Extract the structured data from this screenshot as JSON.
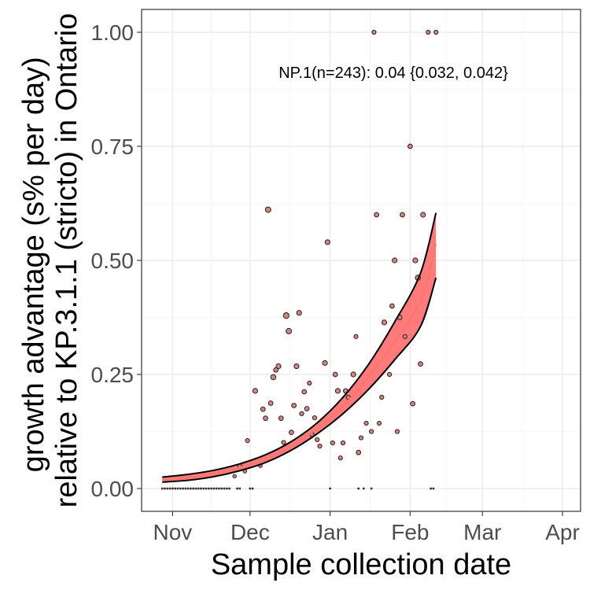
{
  "chart_data": {
    "type": "scatter",
    "xlabel": "Sample collection date",
    "ylabel_lines": [
      "growth advantage (s% per day)",
      "relative to KP.3.1.1 (stricto) in Ontario"
    ],
    "annotation": "NP.1(n=243): 0.04 {0.032, 0.042}",
    "x_ticks": [
      {
        "label": "Nov",
        "date": "2024-11-01"
      },
      {
        "label": "Dec",
        "date": "2024-12-01"
      },
      {
        "label": "Jan",
        "date": "2025-01-01"
      },
      {
        "label": "Feb",
        "date": "2025-02-01"
      },
      {
        "label": "Mar",
        "date": "2025-03-01"
      },
      {
        "label": "Apr",
        "date": "2025-04-01"
      }
    ],
    "xlim": [
      "2024-10-20",
      "2025-04-08"
    ],
    "y_ticks": [
      0.0,
      0.25,
      0.5,
      0.75,
      1.0
    ],
    "y_tick_labels": [
      "0.00",
      "0.25",
      "0.50",
      "0.75",
      "1.00"
    ],
    "ylim": [
      -0.05,
      1.05
    ],
    "grid": true,
    "colors": {
      "fit": "#f8766d",
      "band": "#ff6b6b",
      "bound": "#000000",
      "point_fill": "#c98a85",
      "point_stroke": "#3a1a1a"
    },
    "fit": [
      {
        "x": "2024-10-28",
        "y": 0.019,
        "lower": 0.014,
        "upper": 0.025
      },
      {
        "x": "2024-11-07",
        "y": 0.024,
        "lower": 0.018,
        "upper": 0.031
      },
      {
        "x": "2024-11-17",
        "y": 0.033,
        "lower": 0.026,
        "upper": 0.04
      },
      {
        "x": "2024-11-27",
        "y": 0.046,
        "lower": 0.039,
        "upper": 0.054
      },
      {
        "x": "2024-12-07",
        "y": 0.065,
        "lower": 0.057,
        "upper": 0.074
      },
      {
        "x": "2024-12-17",
        "y": 0.093,
        "lower": 0.084,
        "upper": 0.103
      },
      {
        "x": "2024-12-27",
        "y": 0.131,
        "lower": 0.12,
        "upper": 0.144
      },
      {
        "x": "2025-01-06",
        "y": 0.181,
        "lower": 0.164,
        "upper": 0.2
      },
      {
        "x": "2025-01-16",
        "y": 0.245,
        "lower": 0.218,
        "upper": 0.273
      },
      {
        "x": "2025-01-26",
        "y": 0.322,
        "lower": 0.282,
        "upper": 0.365
      },
      {
        "x": "2025-02-05",
        "y": 0.412,
        "lower": 0.355,
        "upper": 0.472
      },
      {
        "x": "2025-02-11",
        "y": 0.536,
        "lower": 0.462,
        "upper": 0.604
      }
    ],
    "points": [
      {
        "x": "2024-10-28",
        "y": 0.0,
        "n": 1
      },
      {
        "x": "2024-10-29",
        "y": 0.0,
        "n": 1
      },
      {
        "x": "2024-10-30",
        "y": 0.0,
        "n": 1
      },
      {
        "x": "2024-10-31",
        "y": 0.0,
        "n": 1
      },
      {
        "x": "2024-11-01",
        "y": 0.0,
        "n": 1
      },
      {
        "x": "2024-11-02",
        "y": 0.0,
        "n": 1
      },
      {
        "x": "2024-11-03",
        "y": 0.0,
        "n": 1
      },
      {
        "x": "2024-11-04",
        "y": 0.0,
        "n": 1
      },
      {
        "x": "2024-11-05",
        "y": 0.0,
        "n": 1
      },
      {
        "x": "2024-11-06",
        "y": 0.0,
        "n": 1
      },
      {
        "x": "2024-11-07",
        "y": 0.0,
        "n": 1
      },
      {
        "x": "2024-11-08",
        "y": 0.0,
        "n": 1
      },
      {
        "x": "2024-11-09",
        "y": 0.0,
        "n": 1
      },
      {
        "x": "2024-11-10",
        "y": 0.0,
        "n": 1
      },
      {
        "x": "2024-11-11",
        "y": 0.0,
        "n": 1
      },
      {
        "x": "2024-11-12",
        "y": 0.0,
        "n": 1
      },
      {
        "x": "2024-11-13",
        "y": 0.0,
        "n": 1
      },
      {
        "x": "2024-11-14",
        "y": 0.0,
        "n": 1
      },
      {
        "x": "2024-11-15",
        "y": 0.0,
        "n": 1
      },
      {
        "x": "2024-11-16",
        "y": 0.0,
        "n": 1
      },
      {
        "x": "2024-11-17",
        "y": 0.0,
        "n": 1
      },
      {
        "x": "2024-11-18",
        "y": 0.0,
        "n": 1
      },
      {
        "x": "2024-11-19",
        "y": 0.0,
        "n": 1
      },
      {
        "x": "2024-11-20",
        "y": 0.0,
        "n": 1
      },
      {
        "x": "2024-11-21",
        "y": 0.0,
        "n": 1
      },
      {
        "x": "2024-11-22",
        "y": 0.0,
        "n": 1
      },
      {
        "x": "2024-11-23",
        "y": 0.0,
        "n": 1
      },
      {
        "x": "2024-11-26",
        "y": 0.0,
        "n": 1
      },
      {
        "x": "2024-11-27",
        "y": 0.0,
        "n": 1
      },
      {
        "x": "2024-12-01",
        "y": 0.0,
        "n": 1
      },
      {
        "x": "2024-12-02",
        "y": 0.0,
        "n": 1
      },
      {
        "x": "2025-01-01",
        "y": 0.0,
        "n": 1
      },
      {
        "x": "2025-01-12",
        "y": 0.0,
        "n": 1
      },
      {
        "x": "2025-01-14",
        "y": 0.0,
        "n": 1
      },
      {
        "x": "2025-01-17",
        "y": 0.0,
        "n": 1
      },
      {
        "x": "2025-02-09",
        "y": 0.0,
        "n": 1
      },
      {
        "x": "2025-02-10",
        "y": 0.0,
        "n": 1
      },
      {
        "x": "2024-11-25",
        "y": 0.027,
        "n": 1
      },
      {
        "x": "2024-11-27",
        "y": 0.05,
        "n": 2
      },
      {
        "x": "2024-11-29",
        "y": 0.038,
        "n": 1
      },
      {
        "x": "2024-11-30",
        "y": 0.105,
        "n": 2
      },
      {
        "x": "2024-12-03",
        "y": 0.214,
        "n": 4
      },
      {
        "x": "2024-12-05",
        "y": 0.05,
        "n": 1
      },
      {
        "x": "2024-12-06",
        "y": 0.174,
        "n": 3
      },
      {
        "x": "2024-12-07",
        "y": 0.154,
        "n": 3
      },
      {
        "x": "2024-12-08",
        "y": 0.611,
        "n": 6
      },
      {
        "x": "2024-12-09",
        "y": 0.187,
        "n": 3
      },
      {
        "x": "2024-12-10",
        "y": 0.244,
        "n": 5
      },
      {
        "x": "2024-12-11",
        "y": 0.26,
        "n": 3
      },
      {
        "x": "2024-12-12",
        "y": 0.268,
        "n": 4
      },
      {
        "x": "2024-12-13",
        "y": 0.154,
        "n": 3
      },
      {
        "x": "2024-12-14",
        "y": 0.101,
        "n": 2
      },
      {
        "x": "2024-12-15",
        "y": 0.379,
        "n": 7
      },
      {
        "x": "2024-12-16",
        "y": 0.345,
        "n": 6
      },
      {
        "x": "2024-12-17",
        "y": 0.123,
        "n": 3
      },
      {
        "x": "2024-12-18",
        "y": 0.182,
        "n": 3
      },
      {
        "x": "2024-12-19",
        "y": 0.268,
        "n": 4
      },
      {
        "x": "2024-12-20",
        "y": 0.385,
        "n": 4
      },
      {
        "x": "2024-12-21",
        "y": 0.164,
        "n": 2
      },
      {
        "x": "2024-12-22",
        "y": 0.212,
        "n": 3
      },
      {
        "x": "2024-12-23",
        "y": 0.175,
        "n": 3
      },
      {
        "x": "2024-12-24",
        "y": 0.231,
        "n": 2
      },
      {
        "x": "2024-12-25",
        "y": 0.118,
        "n": 2
      },
      {
        "x": "2024-12-26",
        "y": 0.155,
        "n": 2
      },
      {
        "x": "2024-12-27",
        "y": 0.107,
        "n": 2
      },
      {
        "x": "2024-12-28",
        "y": 0.093,
        "n": 2
      },
      {
        "x": "2024-12-30",
        "y": 0.275,
        "n": 4
      },
      {
        "x": "2024-12-31",
        "y": 0.54,
        "n": 4
      },
      {
        "x": "2025-01-02",
        "y": 0.1,
        "n": 2
      },
      {
        "x": "2025-01-03",
        "y": 0.25,
        "n": 3
      },
      {
        "x": "2025-01-04",
        "y": 0.214,
        "n": 4
      },
      {
        "x": "2025-01-05",
        "y": 0.067,
        "n": 2
      },
      {
        "x": "2025-01-06",
        "y": 0.1,
        "n": 2
      },
      {
        "x": "2025-01-07",
        "y": 0.214,
        "n": 3
      },
      {
        "x": "2025-01-08",
        "y": 0.2,
        "n": 2
      },
      {
        "x": "2025-01-10",
        "y": 0.25,
        "n": 4
      },
      {
        "x": "2025-01-11",
        "y": 0.333,
        "n": 2
      },
      {
        "x": "2025-01-12",
        "y": 0.079,
        "n": 3
      },
      {
        "x": "2025-01-13",
        "y": 0.111,
        "n": 2
      },
      {
        "x": "2025-01-15",
        "y": 0.143,
        "n": 2
      },
      {
        "x": "2025-01-17",
        "y": 0.125,
        "n": 2
      },
      {
        "x": "2025-01-18",
        "y": 1.0,
        "n": 2
      },
      {
        "x": "2025-01-19",
        "y": 0.6,
        "n": 3
      },
      {
        "x": "2025-01-20",
        "y": 0.143,
        "n": 2
      },
      {
        "x": "2025-01-21",
        "y": 0.2,
        "n": 2
      },
      {
        "x": "2025-01-22",
        "y": 0.364,
        "n": 4
      },
      {
        "x": "2025-01-24",
        "y": 0.25,
        "n": 2
      },
      {
        "x": "2025-01-25",
        "y": 0.4,
        "n": 3
      },
      {
        "x": "2025-01-26",
        "y": 0.5,
        "n": 4
      },
      {
        "x": "2025-01-27",
        "y": 0.125,
        "n": 2
      },
      {
        "x": "2025-01-28",
        "y": 0.375,
        "n": 3
      },
      {
        "x": "2025-01-29",
        "y": 0.6,
        "n": 3
      },
      {
        "x": "2025-01-30",
        "y": 0.333,
        "n": 2
      },
      {
        "x": "2025-02-01",
        "y": 0.75,
        "n": 3
      },
      {
        "x": "2025-02-02",
        "y": 0.186,
        "n": 3
      },
      {
        "x": "2025-02-03",
        "y": 0.5,
        "n": 4
      },
      {
        "x": "2025-02-04",
        "y": 0.462,
        "n": 5
      },
      {
        "x": "2025-02-05",
        "y": 0.273,
        "n": 3
      },
      {
        "x": "2025-02-06",
        "y": 0.6,
        "n": 4
      },
      {
        "x": "2025-02-08",
        "y": 1.0,
        "n": 2
      },
      {
        "x": "2025-02-11",
        "y": 1.0,
        "n": 2
      }
    ]
  }
}
